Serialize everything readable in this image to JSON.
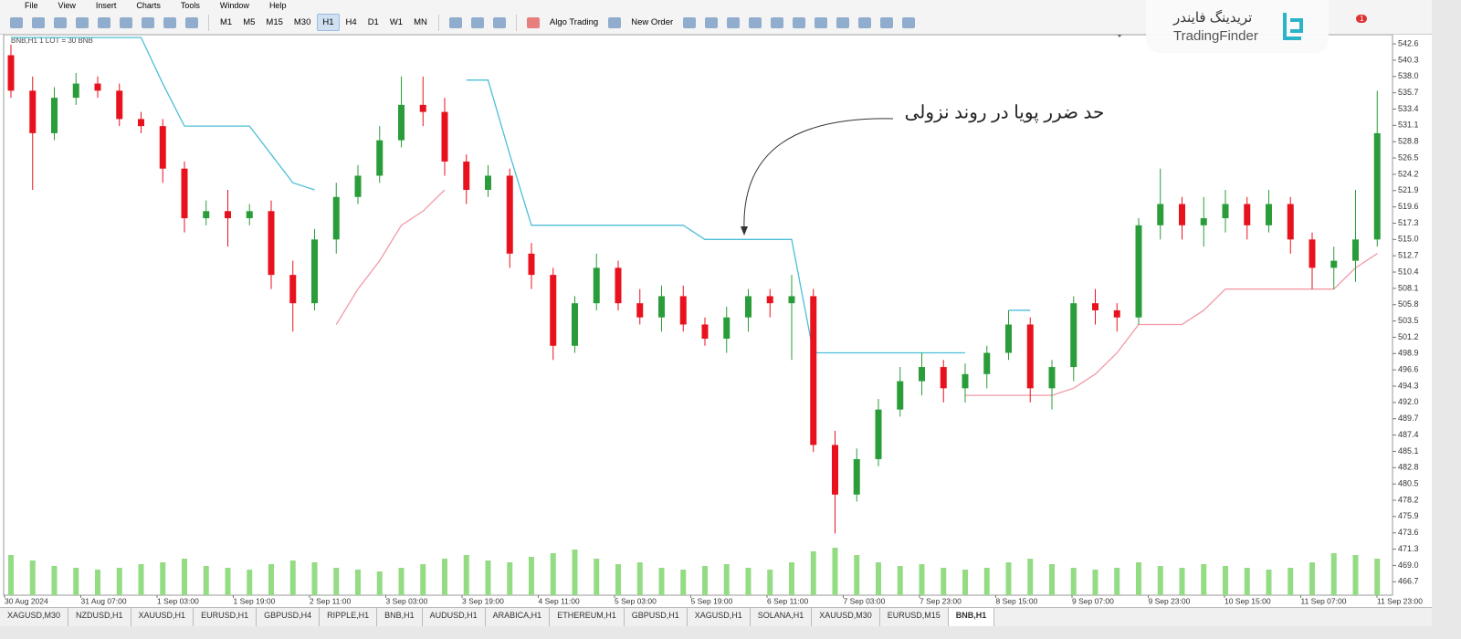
{
  "menu": [
    "File",
    "View",
    "Insert",
    "Charts",
    "Tools",
    "Window",
    "Help"
  ],
  "toolbar": {
    "timeframes": [
      "M1",
      "M5",
      "M15",
      "M30",
      "H1",
      "H4",
      "D1",
      "W1",
      "MN"
    ],
    "active_timeframe": "H1",
    "algo_trading": "Algo Trading",
    "new_order": "New Order",
    "notifications": "1"
  },
  "logo": {
    "name_fa": "تریدینگ فایندر",
    "name_en": "TradingFinder"
  },
  "tabs": [
    "XAGUSD,M30",
    "NZDUSD,H1",
    "XAUUSD,H1",
    "EURUSD,H1",
    "GBPUSD,H4",
    "RIPPLE,H1",
    "BNB,H1",
    "AUDUSD,H1",
    "ARABICA,H1",
    "ETHEREUM,H1",
    "GBPUSD,H1",
    "XAGUSD,H1",
    "SOLANA,H1",
    "XAUUSD,M30",
    "EURUSD,M15",
    "BNB,H1"
  ],
  "active_tab": 15,
  "chart_data": {
    "type": "candlestick",
    "label": "BNB,H1  1 LOT = 30 BNB",
    "annotation": "حد ضرر پویا در روند نزولی",
    "x_labels": [
      "30 Aug 2024",
      "31 Aug 07:00",
      "1 Sep 03:00",
      "1 Sep 19:00",
      "2 Sep 11:00",
      "3 Sep 03:00",
      "3 Sep 19:00",
      "4 Sep 11:00",
      "5 Sep 03:00",
      "5 Sep 19:00",
      "6 Sep 11:00",
      "7 Sep 03:00",
      "7 Sep 23:00",
      "8 Sep 15:00",
      "9 Sep 07:00",
      "9 Sep 23:00",
      "10 Sep 15:00",
      "11 Sep 07:00",
      "11 Sep 23:00"
    ],
    "up_color": "#2a9d3a",
    "down_color": "#e8121e",
    "volume_color": "#93dc84",
    "ylim": [
      464.8,
      543.9
    ],
    "yticks": [
      542.6,
      540.3,
      {
        "value": 538.0,
        "label": "538.0"
      },
      535.7,
      533.4,
      531.1,
      528.8,
      526.5,
      524.2,
      521.9,
      519.6,
      517.3,
      {
        "value": 515.0,
        "label": "515.0"
      },
      512.7,
      510.4,
      508.1,
      505.8,
      503.5,
      501.2,
      498.9,
      496.6,
      494.3,
      {
        "value": 492.0,
        "label": "492.0"
      },
      489.7,
      487.4,
      485.1,
      482.8,
      480.5,
      478.2,
      475.9,
      473.6,
      471.3,
      {
        "value": 469.0,
        "label": "469.0"
      },
      466.7
    ],
    "open": [
      541,
      536,
      530,
      535,
      537,
      536,
      532,
      531,
      525,
      518,
      519,
      518,
      519,
      510,
      506,
      515,
      521,
      524,
      529,
      534,
      533,
      526,
      522,
      524,
      513,
      510,
      500,
      506,
      511,
      506,
      504,
      507,
      503,
      501,
      504,
      507,
      506,
      507,
      486,
      479,
      484,
      491,
      495,
      497,
      494,
      496,
      499,
      503,
      494,
      497,
      506,
      505,
      504,
      517,
      520,
      517,
      518,
      520,
      517,
      520,
      515,
      511,
      512,
      515
    ],
    "high": [
      542.5,
      538,
      536.5,
      538.5,
      538,
      537,
      533,
      532,
      526,
      520.5,
      522,
      520,
      520.5,
      512,
      516.5,
      523,
      525.5,
      531,
      538,
      538,
      535,
      527,
      525.5,
      525,
      514.5,
      511,
      507,
      513,
      512,
      508,
      508.5,
      508.5,
      504,
      505.5,
      508,
      508,
      510,
      508,
      488,
      485.5,
      492.5,
      497,
      499,
      498,
      497.5,
      500,
      505,
      504,
      498,
      507,
      508,
      506,
      518,
      525,
      521,
      521,
      522,
      521,
      522,
      521,
      516,
      514,
      522,
      536
    ],
    "low": [
      535,
      522,
      529,
      534,
      535,
      531,
      530,
      523,
      516,
      517,
      514,
      517,
      508,
      502,
      505,
      513,
      520,
      523,
      528,
      531,
      524,
      520,
      521,
      511,
      508,
      498,
      499,
      505,
      505,
      503,
      502,
      502,
      500,
      499,
      502,
      504,
      498,
      485,
      473.5,
      478,
      483,
      490,
      493,
      492,
      492,
      494,
      498,
      492,
      491,
      495,
      503,
      502,
      503,
      515,
      515,
      514,
      516,
      515,
      516,
      513,
      508,
      508,
      509,
      514
    ],
    "close": [
      536,
      530,
      535,
      537,
      536,
      532,
      531,
      525,
      518,
      519,
      518,
      519,
      510,
      506,
      515,
      521,
      524,
      529,
      534,
      533,
      526,
      522,
      524,
      513,
      510,
      500,
      506,
      511,
      506,
      504,
      507,
      503,
      501,
      504,
      507,
      506,
      507,
      486,
      479,
      484,
      491,
      495,
      497,
      494,
      496,
      499,
      503,
      494,
      497,
      506,
      505,
      504,
      517,
      520,
      517,
      518,
      520,
      517,
      520,
      515,
      511,
      512,
      515,
      530
    ],
    "volume": [
      44,
      38,
      32,
      30,
      28,
      30,
      34,
      36,
      40,
      32,
      30,
      28,
      34,
      38,
      36,
      30,
      28,
      26,
      30,
      34,
      40,
      44,
      38,
      36,
      42,
      46,
      50,
      40,
      34,
      36,
      30,
      28,
      32,
      34,
      30,
      28,
      36,
      48,
      52,
      44,
      36,
      32,
      34,
      30,
      28,
      30,
      36,
      40,
      34,
      30,
      28,
      30,
      36,
      32,
      30,
      34,
      32,
      30,
      28,
      30,
      36,
      46,
      44,
      40
    ],
    "stop_upper": {
      "color": "#4dbfd6",
      "values": [
        543.5,
        543.5,
        543.5,
        543.5,
        543.5,
        543.5,
        543.5,
        537,
        531,
        531,
        531,
        531,
        527,
        523,
        522,
        null,
        null,
        null,
        null,
        null,
        null,
        537.5,
        537.5,
        527,
        517,
        517,
        517,
        517,
        517,
        517,
        517,
        517,
        515,
        515,
        515,
        515,
        515,
        499,
        499,
        499,
        499,
        499,
        499,
        499,
        499,
        null,
        505,
        505,
        null,
        null,
        null,
        null,
        null,
        null,
        null,
        null,
        null,
        null,
        null,
        null,
        null,
        null,
        null,
        null
      ]
    },
    "stop_lower": {
      "color": "#f29aa6",
      "values": [
        null,
        null,
        null,
        null,
        null,
        null,
        null,
        null,
        null,
        null,
        null,
        null,
        null,
        null,
        null,
        503,
        508,
        512,
        517,
        519,
        522,
        null,
        null,
        null,
        null,
        null,
        null,
        null,
        null,
        null,
        null,
        null,
        null,
        null,
        null,
        null,
        null,
        null,
        null,
        null,
        null,
        null,
        null,
        null,
        493,
        493,
        493,
        493,
        493,
        494,
        496,
        499,
        503,
        503,
        503,
        505,
        508,
        508,
        508,
        508,
        508,
        508,
        511,
        513
      ]
    }
  }
}
